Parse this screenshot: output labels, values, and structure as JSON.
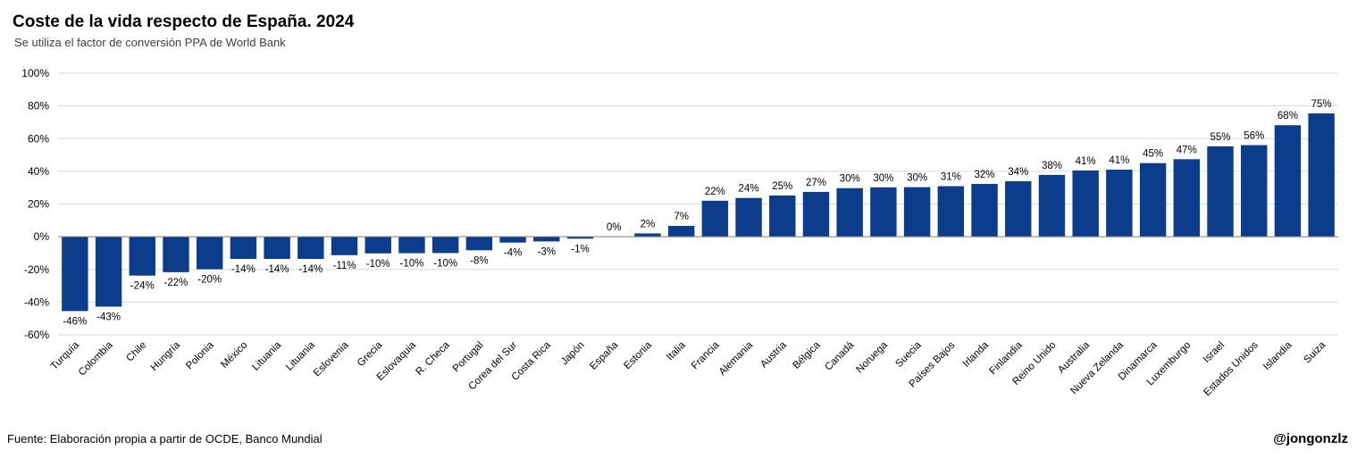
{
  "title": "Coste de la vida respecto de España. 2024",
  "subtitle": "Se utiliza el factor de conversión PPA de World Bank",
  "source": "Fuente: Elaboración propia a partir de OCDE, Banco Mundial",
  "handle": "@jongonzlz",
  "colors": {
    "bar": "#0b3d8c",
    "grid": "#d9d9d9",
    "axis": "#808080"
  },
  "chart_data": {
    "type": "bar",
    "categories": [
      "Turquía",
      "Colombia",
      "Chile",
      "Hungría",
      "Polonia",
      "México",
      "Lituania",
      "Lituania",
      "Eslovenia",
      "Grecia",
      "Eslovaquia",
      "R. Checa",
      "Portugal",
      "Corea del Sur",
      "Costa Rica",
      "Japón",
      "España",
      "Estonia",
      "Italia",
      "Francia",
      "Alemania",
      "Austria",
      "Bélgica",
      "Canadá",
      "Noruega",
      "Suecia",
      "Países Bajos",
      "Irlanda",
      "Finlandia",
      "Reino Unido",
      "Australia",
      "Nueva Zelanda",
      "Dinamarca",
      "Luxemburgo",
      "Israel",
      "Estados Unidos",
      "Islandia",
      "Suiza"
    ],
    "values": [
      -45.5,
      -42.8,
      -23.8,
      -21.7,
      -19.9,
      -13.6,
      -13.6,
      -13.6,
      -11.3,
      -10.2,
      -10.1,
      -10.0,
      -8.3,
      -3.6,
      -2.9,
      -1.2,
      0,
      2,
      6.6,
      22,
      23.7,
      25.2,
      27.4,
      29.7,
      30.2,
      30.3,
      30.9,
      32.3,
      33.9,
      37.8,
      40.5,
      41,
      45,
      47.4,
      55.3,
      56,
      68.2,
      75.4
    ],
    "labels": [
      "-46%",
      "-43%",
      "-24%",
      "-22%",
      "-20%",
      "-14%",
      "-14%",
      "-14%",
      "-11%",
      "-10%",
      "-10%",
      "-10%",
      "-8%",
      "-4%",
      "-3%",
      "-1%",
      "0%",
      "2%",
      "7%",
      "22%",
      "24%",
      "25%",
      "27%",
      "30%",
      "30%",
      "30%",
      "31%",
      "32%",
      "34%",
      "38%",
      "41%",
      "41%",
      "45%",
      "47%",
      "55%",
      "56%",
      "68%",
      "75%"
    ],
    "yticks": [
      "-60%",
      "-40%",
      "-20%",
      "0%",
      "20%",
      "40%",
      "60%",
      "80%",
      "100%"
    ],
    "ytick_values": [
      -60,
      -40,
      -20,
      0,
      20,
      40,
      60,
      80,
      100
    ],
    "ylim": [
      -60,
      100
    ],
    "grid": true,
    "legend": "none"
  }
}
